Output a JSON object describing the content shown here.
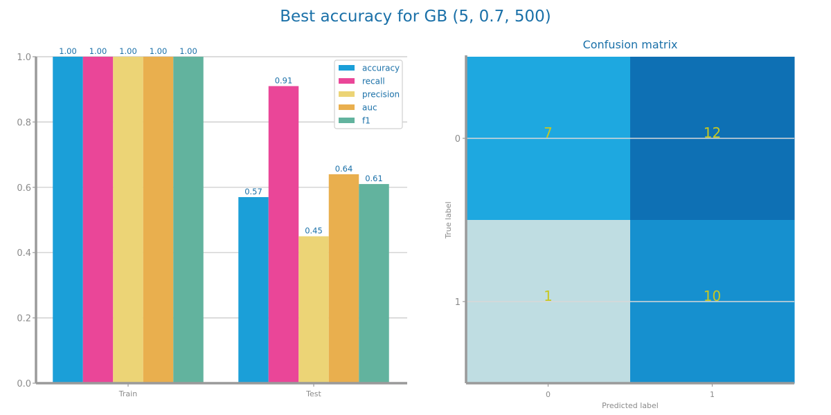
{
  "title": "Best accuracy for GB (5, 0.7, 500)",
  "colors": {
    "title": "#1a70a8",
    "axis": "#9a9a9a",
    "grid": "#c8c8c8",
    "cell_value": "#c8c820"
  },
  "chart_data": [
    {
      "type": "bar",
      "title": "",
      "xlabel": "",
      "ylabel": "",
      "categories": [
        "Train",
        "Test"
      ],
      "ylim": [
        0,
        1.0
      ],
      "yticks": [
        "0.0",
        "0.2",
        "0.4",
        "0.6",
        "0.8",
        "1.0"
      ],
      "grid": true,
      "legend_position": "top-right",
      "series": [
        {
          "name": "accuracy",
          "color": "#1b9fd8",
          "values": [
            1.0,
            0.57
          ],
          "labels": [
            "1.00",
            "0.57"
          ]
        },
        {
          "name": "recall",
          "color": "#ea4698",
          "values": [
            1.0,
            0.91
          ],
          "labels": [
            "1.00",
            "0.91"
          ]
        },
        {
          "name": "precision",
          "color": "#ecd476",
          "values": [
            1.0,
            0.45
          ],
          "labels": [
            "1.00",
            "0.45"
          ]
        },
        {
          "name": "auc",
          "color": "#e9af4e",
          "values": [
            1.0,
            0.64
          ],
          "labels": [
            "1.00",
            "0.64"
          ]
        },
        {
          "name": "f1",
          "color": "#62b39e",
          "values": [
            1.0,
            0.61
          ],
          "labels": [
            "1.00",
            "0.61"
          ]
        }
      ]
    },
    {
      "type": "heatmap",
      "title": "Confusion matrix",
      "xlabel": "Predicted label",
      "ylabel": "True label",
      "x_categories": [
        "0",
        "1"
      ],
      "y_categories": [
        "0",
        "1"
      ],
      "values": [
        [
          7,
          12
        ],
        [
          1,
          10
        ]
      ],
      "cell_colors": [
        [
          "#1ea8e0",
          "#0e70b4"
        ],
        [
          "#bfdde2",
          "#1690cf"
        ]
      ]
    }
  ]
}
